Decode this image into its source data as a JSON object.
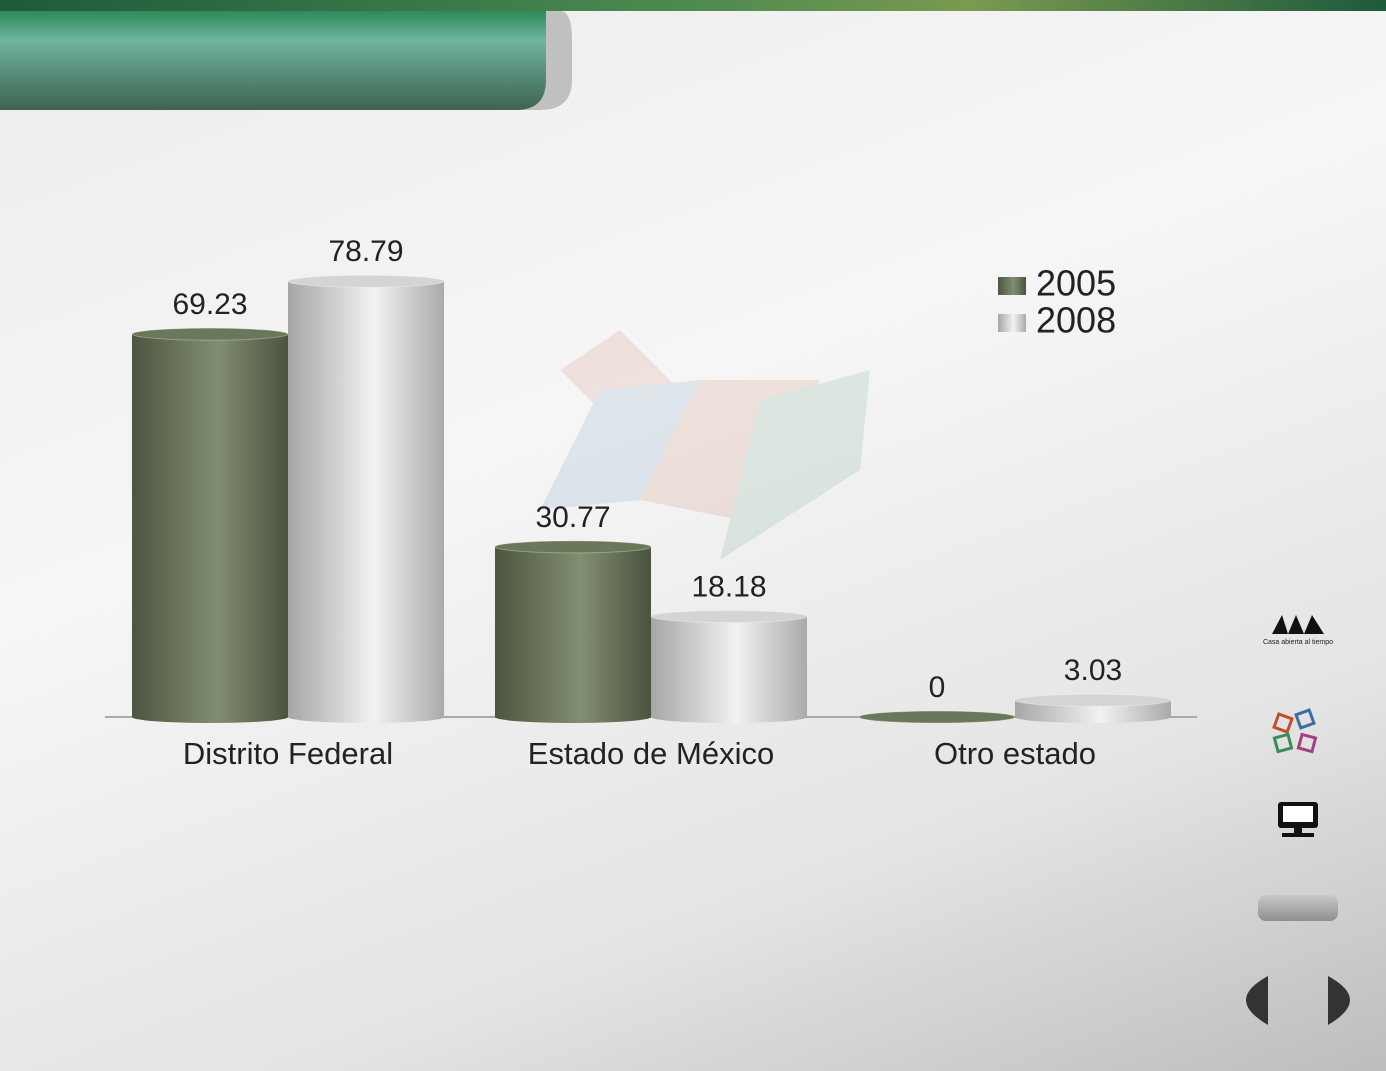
{
  "chart_data": {
    "type": "cylinder-bar",
    "categories": [
      "Distrito Federal",
      "Estado de México",
      "Otro estado"
    ],
    "series": [
      {
        "name": "2005",
        "color": "#6b7759",
        "values": [
          69.23,
          30.77,
          0
        ]
      },
      {
        "name": "2008",
        "color": "#d4d4d4",
        "values": [
          78.79,
          18.18,
          3.03
        ]
      }
    ],
    "legend": "top-right"
  },
  "sidebar": {
    "logo_text": "Casa abierta al tiempo"
  }
}
